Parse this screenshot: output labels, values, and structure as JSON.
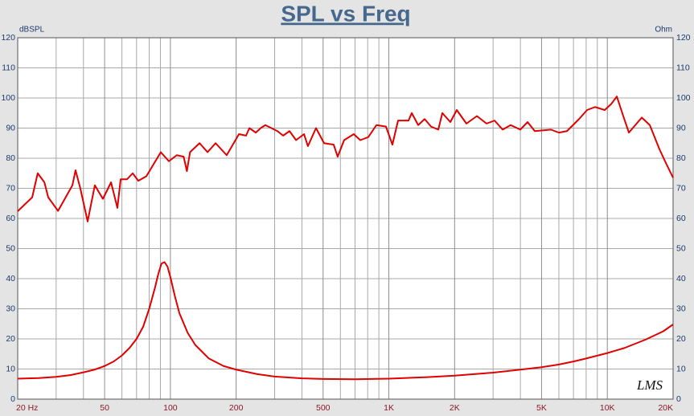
{
  "chart_data": {
    "type": "line",
    "title": "SPL vs Freq",
    "y_label": "dBSPL",
    "y2_label": "Ohm",
    "annotation": "LMS",
    "log_x": true,
    "grid": true,
    "xlim": [
      20,
      20000
    ],
    "xticks": [
      {
        "value": 20,
        "label": "20 Hz"
      },
      50,
      100,
      200,
      500,
      {
        "value": 1000,
        "label": "1K"
      },
      {
        "value": 2000,
        "label": "2K"
      },
      {
        "value": 5000,
        "label": "5K"
      },
      {
        "value": 10000,
        "label": "10K"
      },
      {
        "value": 20000,
        "label": "20K"
      }
    ],
    "ylim": [
      0,
      120
    ],
    "yticks": [
      0,
      10,
      20,
      30,
      40,
      50,
      60,
      70,
      80,
      90,
      100,
      110,
      120
    ],
    "y2lim": [
      0,
      120
    ],
    "y2ticks": [
      0,
      10,
      20,
      30,
      40,
      50,
      60,
      70,
      80,
      90,
      100,
      110,
      120
    ],
    "series": [
      {
        "color": "#e00000",
        "x": [
          20,
          23.3,
          24.7,
          26.5,
          27.6,
          30.6,
          35.6,
          36.8,
          38.7,
          41.8,
          45.1,
          49.1,
          53.5,
          57.2,
          59.2,
          63.3,
          67.2,
          71.3,
          77.6,
          90.4,
          98.4,
          107,
          115,
          119,
          123,
          136,
          148,
          161,
          181,
          206,
          222,
          230,
          246,
          259,
          272,
          309,
          328,
          351,
          376,
          409,
          426,
          464,
          505,
          559,
          583,
          624,
          691,
          740,
          805,
          877,
          970,
          1038,
          1102,
          1230,
          1273,
          1362,
          1458,
          1560,
          1684,
          1757,
          1912,
          2046,
          2265,
          2530,
          2800,
          3048,
          3317,
          3610,
          3997,
          4315,
          4656,
          5515,
          6004,
          6536,
          7421,
          8078,
          8790,
          9731,
          10417,
          11052,
          11827,
          12553,
          14375,
          15645,
          17318,
          18375,
          20000
        ],
        "values": [
          62.4,
          67,
          75,
          72,
          67,
          62.5,
          71,
          76,
          70,
          59,
          71,
          66.5,
          72,
          63.5,
          73,
          73,
          75,
          72.5,
          74,
          82,
          79,
          81,
          80.5,
          75.7,
          82,
          85,
          82,
          85,
          81,
          88,
          87.5,
          90,
          88.5,
          90,
          91,
          89,
          87.5,
          89,
          86,
          88,
          84,
          90,
          85,
          84.5,
          80.5,
          86,
          88,
          86,
          87,
          91,
          90.5,
          84.5,
          92.5,
          92.5,
          95,
          91,
          93,
          90.5,
          89.5,
          95,
          92,
          96,
          91.5,
          94,
          91.5,
          92.5,
          89.5,
          91,
          89.5,
          92,
          89,
          89.5,
          88.5,
          89,
          93,
          96,
          97,
          96,
          98,
          100.5,
          94,
          88.5,
          93.5,
          91,
          83,
          79,
          73.5
        ]
      },
      {
        "color": "#e00000",
        "axis": "y2",
        "x": [
          20,
          25,
          30,
          35,
          40,
          45,
          50,
          55,
          60,
          65,
          70,
          75,
          80,
          85,
          88,
          91,
          94,
          97,
          100,
          105,
          110,
          120,
          130,
          150,
          175,
          200,
          250,
          300,
          400,
          500,
          700,
          1000,
          1500,
          2000,
          3000,
          4000,
          5000,
          6000,
          7000,
          8000,
          10000,
          12000,
          15000,
          18000,
          20000
        ],
        "values": [
          6.8,
          7.0,
          7.4,
          8.0,
          8.9,
          9.8,
          11,
          12.5,
          14.5,
          17,
          20,
          24,
          30,
          37,
          41.5,
          45,
          45.5,
          44,
          40.5,
          34,
          28.5,
          22,
          18,
          13.5,
          11,
          9.8,
          8.3,
          7.5,
          6.9,
          6.7,
          6.6,
          6.8,
          7.3,
          7.8,
          8.8,
          9.8,
          10.6,
          11.5,
          12.5,
          13.5,
          15.3,
          17,
          19.8,
          22.5,
          24.8
        ]
      }
    ]
  }
}
